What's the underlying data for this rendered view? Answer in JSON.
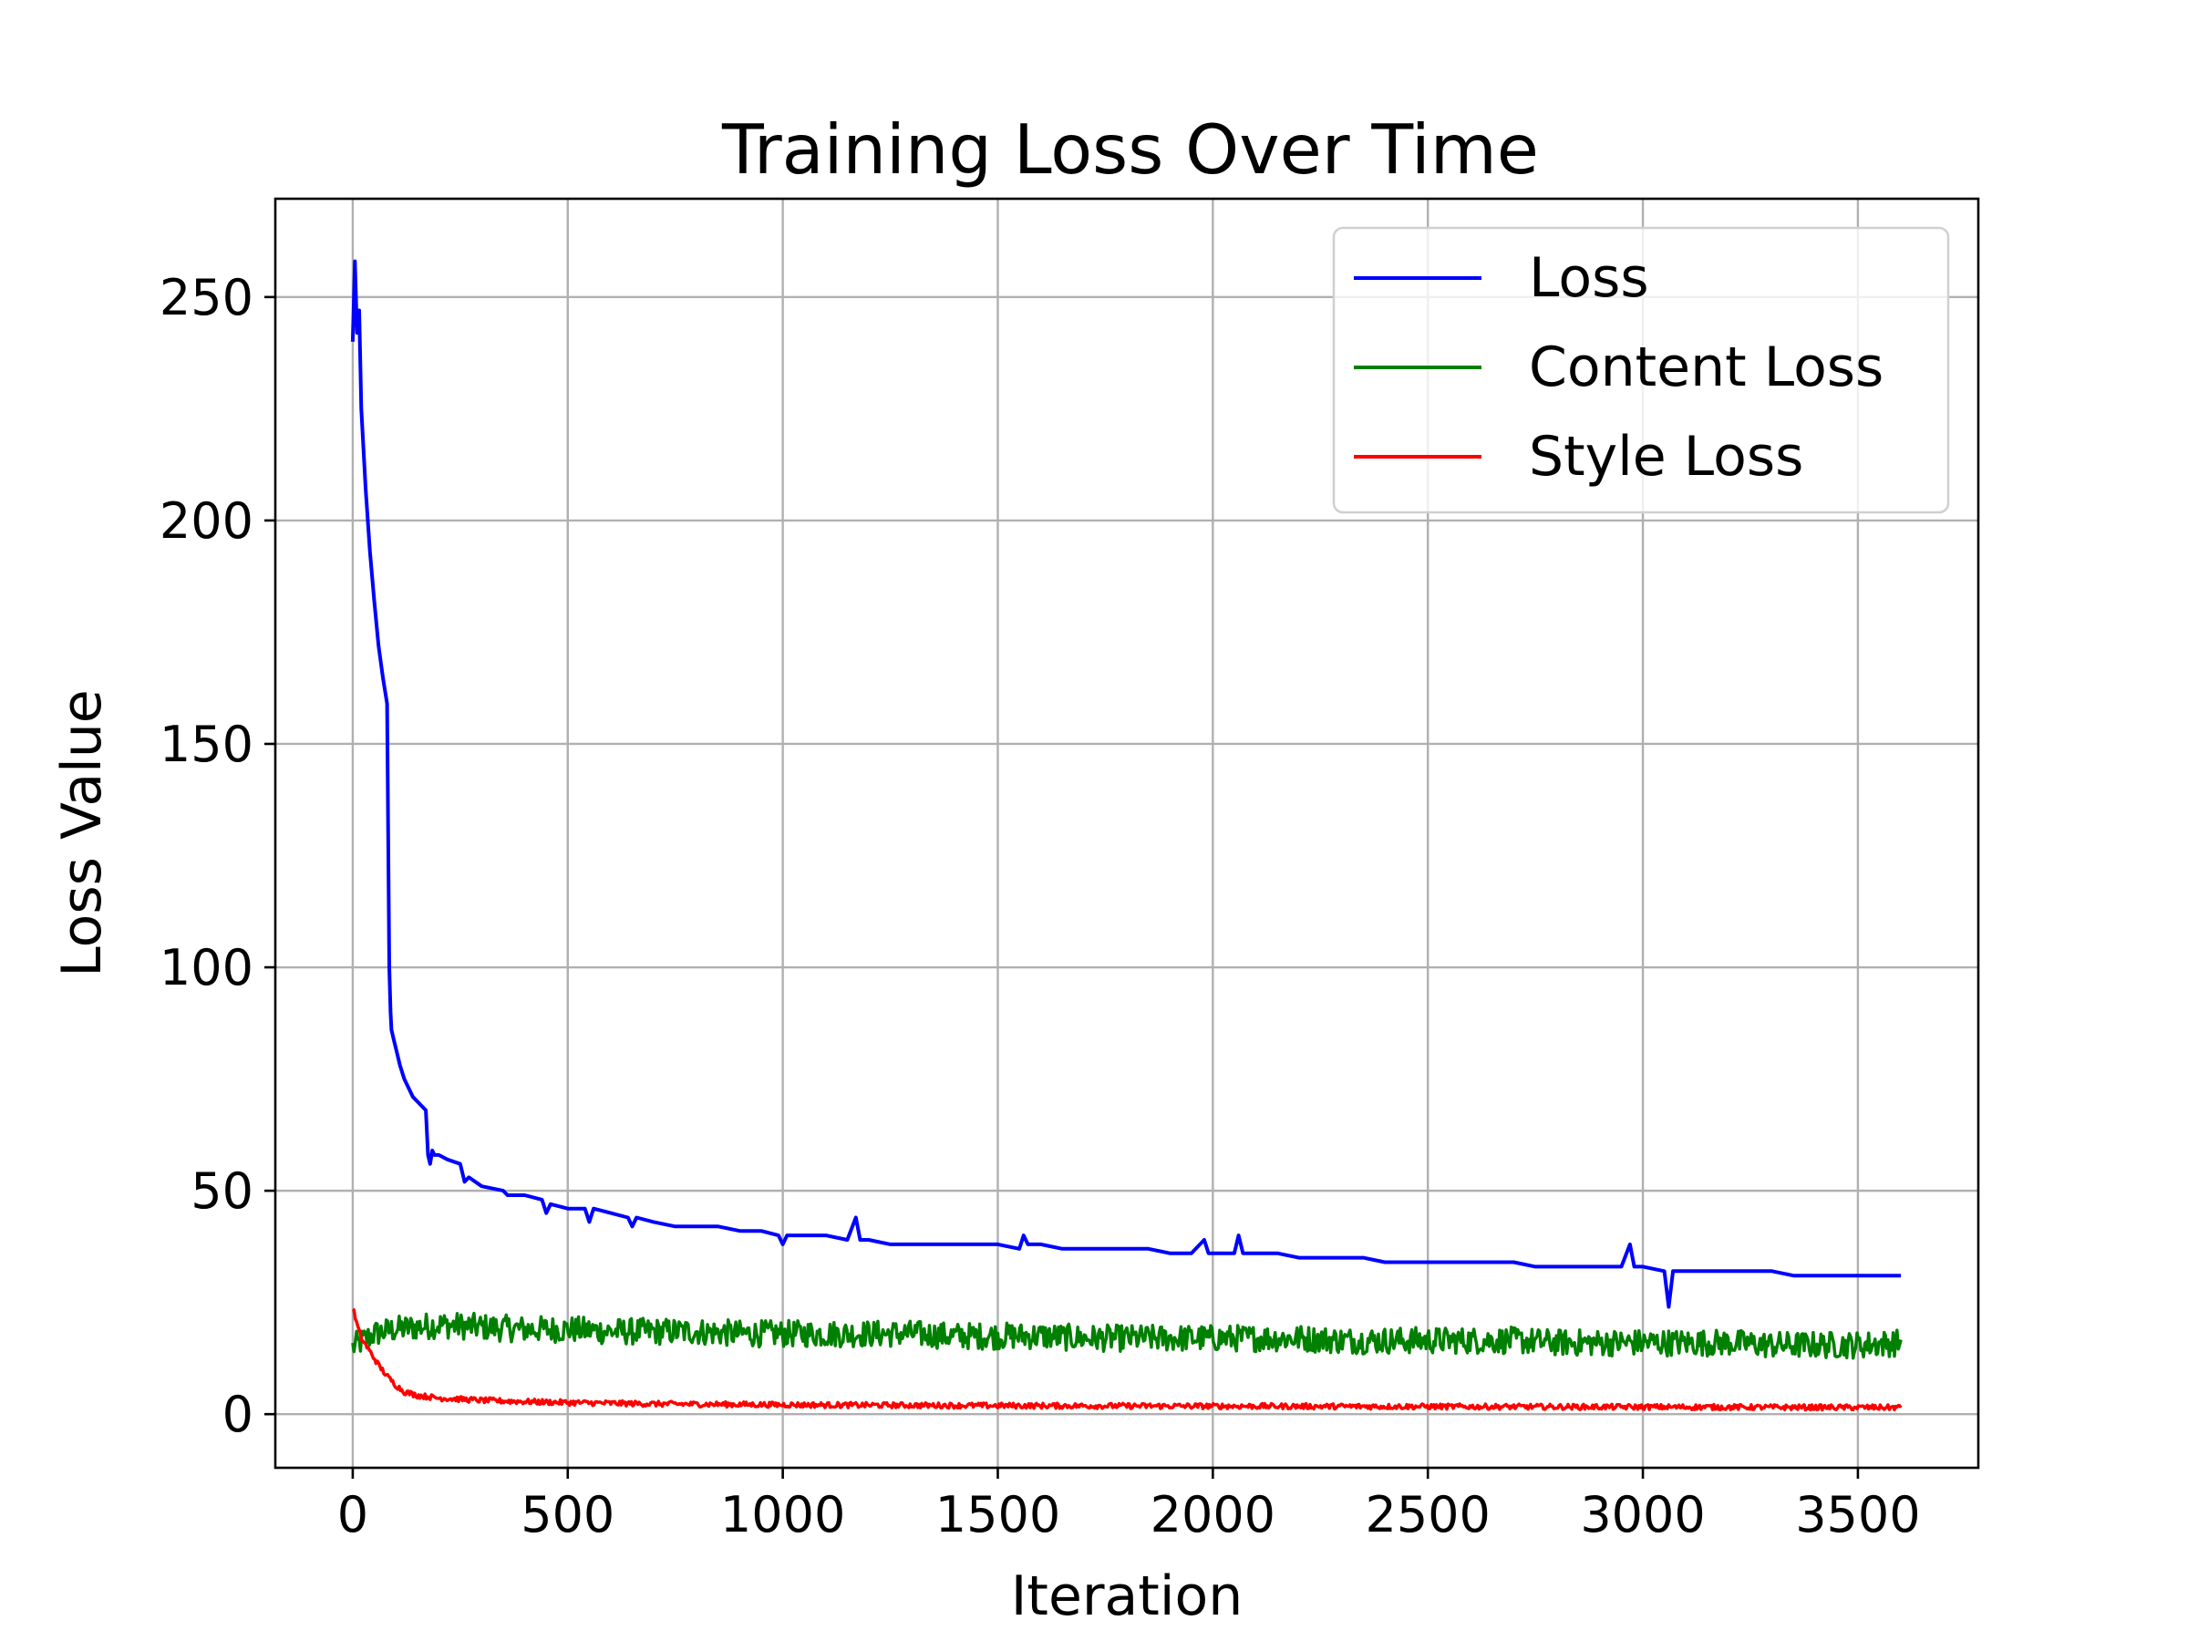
{
  "chart_data": {
    "type": "line",
    "title": "Training Loss Over Time",
    "xlabel": "Iteration",
    "ylabel": "Loss Value",
    "xlim": [
      -180,
      3780
    ],
    "ylim": [
      -12,
      272
    ],
    "xticks": [
      0,
      500,
      1000,
      1500,
      2000,
      2500,
      3000,
      3500
    ],
    "yticks": [
      0,
      50,
      100,
      150,
      200,
      250
    ],
    "grid": true,
    "legend_position": "top-right",
    "series": [
      {
        "name": "Loss",
        "color": "#0000ff",
        "x": [
          0,
          5,
          10,
          15,
          20,
          30,
          40,
          50,
          60,
          70,
          80,
          85,
          88,
          90,
          95,
          100,
          110,
          120,
          130,
          140,
          150,
          160,
          170,
          175,
          180,
          185,
          190,
          200,
          220,
          250,
          260,
          270,
          300,
          350,
          360,
          370,
          400,
          440,
          450,
          460,
          500,
          540,
          550,
          560,
          600,
          640,
          650,
          660,
          700,
          750,
          800,
          850,
          900,
          950,
          990,
          1000,
          1010,
          1050,
          1100,
          1150,
          1170,
          1180,
          1200,
          1250,
          1300,
          1350,
          1400,
          1450,
          1500,
          1550,
          1560,
          1570,
          1600,
          1650,
          1700,
          1750,
          1800,
          1850,
          1900,
          1950,
          1980,
          1990,
          2000,
          2050,
          2060,
          2070,
          2100,
          2150,
          2200,
          2250,
          2300,
          2350,
          2400,
          2450,
          2500,
          2550,
          2600,
          2650,
          2700,
          2750,
          2800,
          2850,
          2900,
          2950,
          2970,
          2980,
          3000,
          3050,
          3060,
          3070,
          3100,
          3150,
          3200,
          3250,
          3300,
          3350,
          3400,
          3450,
          3500,
          3550,
          3600
        ],
        "y": [
          240,
          258,
          242,
          247,
          225,
          207,
          193,
          182,
          172,
          165,
          159,
          100,
          90,
          86,
          84,
          82,
          78,
          75,
          73,
          71,
          70,
          69,
          68,
          58,
          56,
          59,
          58,
          58,
          57,
          56,
          52,
          53,
          51,
          50,
          49,
          49,
          49,
          48,
          45,
          47,
          46,
          46,
          43,
          46,
          45,
          44,
          42,
          44,
          43,
          42,
          42,
          42,
          41,
          41,
          40,
          38,
          40,
          40,
          40,
          39,
          44,
          39,
          39,
          38,
          38,
          38,
          38,
          38,
          38,
          37,
          40,
          38,
          38,
          37,
          37,
          37,
          37,
          37,
          36,
          36,
          39,
          36,
          36,
          36,
          40,
          36,
          36,
          36,
          35,
          35,
          35,
          35,
          34,
          34,
          34,
          34,
          34,
          34,
          34,
          33,
          33,
          33,
          33,
          33,
          38,
          33,
          33,
          32,
          24,
          32,
          32,
          32,
          32,
          32,
          32,
          31,
          31,
          31,
          31,
          31,
          31
        ]
      },
      {
        "name": "Content Loss",
        "color": "#008000",
        "x": [
          0,
          50,
          100,
          200,
          300,
          400,
          500,
          600,
          700,
          800,
          900,
          1000,
          1100,
          1200,
          1300,
          1400,
          1500,
          1600,
          1700,
          1800,
          1900,
          2000,
          2100,
          2200,
          2300,
          2400,
          2500,
          2600,
          2700,
          2800,
          2900,
          3000,
          3100,
          3200,
          3300,
          3400,
          3500,
          3600
        ],
        "y": [
          15,
          18,
          19,
          20,
          19.5,
          19,
          19,
          18.5,
          18.5,
          18.5,
          18,
          18,
          18,
          18,
          18,
          17.5,
          17.5,
          17.5,
          17,
          17,
          17,
          17,
          17,
          17,
          16.5,
          16.5,
          16.5,
          16.5,
          16.5,
          16,
          16,
          16,
          16,
          16,
          15.5,
          15.5,
          15.5,
          16
        ],
        "noise_amplitude": 3
      },
      {
        "name": "Style Loss",
        "color": "#ff0000",
        "x": [
          0,
          10,
          20,
          40,
          60,
          80,
          100,
          120,
          150,
          200,
          300,
          400,
          500,
          700,
          1000,
          1500,
          2000,
          2500,
          3000,
          3500,
          3600
        ],
        "y": [
          24,
          20,
          17,
          14,
          11,
          8.5,
          6.5,
          5,
          4.2,
          3.6,
          3.1,
          2.8,
          2.6,
          2.3,
          2.1,
          1.9,
          1.8,
          1.7,
          1.6,
          1.5,
          1.5
        ],
        "noise_amplitude": 0.6
      }
    ]
  }
}
